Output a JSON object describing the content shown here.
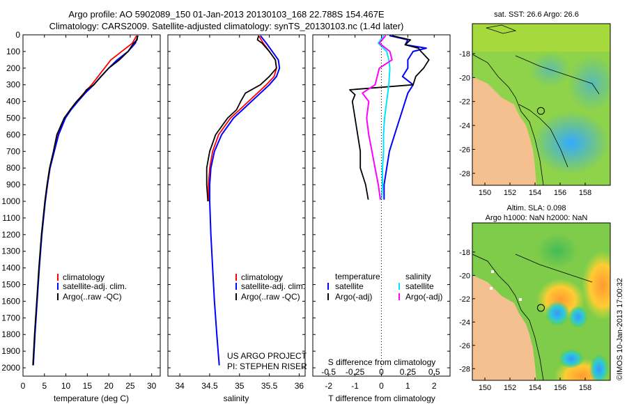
{
  "header": {
    "line1": "Argo profile: AO 5902089_150 01-Jan-2013 20130103_168 22.788S 154.467E",
    "line2": "Climatology: CARS2009. Satellite-adjusted climatology: synTS_20130103.nc (1.4d later)"
  },
  "colors": {
    "climatology": "#ff0000",
    "satellite": "#0000ff",
    "argo": "#000000",
    "sal_satellite": "#00e5ff",
    "sal_argo": "#ff00ff",
    "land": "#f5c08f"
  },
  "depth_ticks": [
    0,
    100,
    200,
    300,
    400,
    500,
    600,
    700,
    800,
    900,
    1000,
    1100,
    1200,
    1300,
    1400,
    1500,
    1600,
    1700,
    1800,
    1900,
    2000
  ],
  "chart_data": [
    {
      "type": "line",
      "name": "temperature-profile",
      "xlabel": "temperature (deg C)",
      "ylabel": "depth",
      "xlim": [
        0,
        32
      ],
      "ylim": [
        0,
        2050
      ],
      "y_inverted": true,
      "xticks": [
        0,
        5,
        10,
        15,
        20,
        25,
        30
      ],
      "legend": [
        "climatology",
        "satellite-adj. clim.",
        "Argo(..raw -QC)"
      ],
      "series": [
        {
          "name": "climatology",
          "depth": [
            5,
            50,
            100,
            150,
            200,
            250,
            300,
            350,
            400,
            450,
            500,
            600,
            700,
            800,
            900,
            1000
          ],
          "values": [
            26.5,
            25.5,
            23.0,
            20.5,
            19.0,
            17.5,
            16.0,
            14.2,
            12.5,
            11.0,
            9.7,
            8.2,
            7.3,
            6.3,
            5.7,
            5.2
          ]
        },
        {
          "name": "satellite-adj. clim.",
          "depth": [
            5,
            50,
            100,
            150,
            200,
            250,
            300,
            350,
            400,
            450,
            500,
            600,
            700,
            800,
            900,
            1000,
            1200,
            1400,
            1600,
            1800,
            1985
          ],
          "values": [
            26.8,
            26.2,
            24.5,
            22.0,
            20.0,
            18.2,
            16.5,
            14.5,
            12.8,
            11.2,
            9.9,
            8.3,
            7.3,
            6.3,
            5.7,
            5.2,
            4.4,
            3.8,
            3.3,
            2.8,
            2.4
          ]
        },
        {
          "name": "Argo(..raw -QC)",
          "depth": [
            5,
            30,
            50,
            100,
            150,
            200,
            250,
            300,
            330,
            360,
            400,
            450,
            500,
            600,
            700,
            800,
            900,
            1000,
            1200,
            1400,
            1600,
            1800,
            1985
          ],
          "values": [
            26.7,
            26.6,
            25.8,
            24.5,
            22.5,
            20.0,
            18.2,
            16.5,
            14.8,
            14.0,
            12.5,
            11.0,
            9.6,
            7.9,
            7.1,
            6.2,
            5.6,
            5.1,
            4.3,
            3.7,
            3.2,
            2.7,
            2.3
          ]
        }
      ]
    },
    {
      "type": "line",
      "name": "salinity-profile",
      "xlabel": "salinity",
      "xlim": [
        33.8,
        36.1
      ],
      "ylim": [
        0,
        2050
      ],
      "y_inverted": true,
      "xticks": [
        34,
        34.5,
        35,
        35.5,
        36
      ],
      "legend": [
        "climatology",
        "satellite-adj. clim.",
        "Argo(..raw -QC)"
      ],
      "annotation": [
        "US ARGO PROJECT",
        "PI: STEPHEN RISER"
      ],
      "series": [
        {
          "name": "climatology",
          "depth": [
            5,
            50,
            100,
            150,
            200,
            250,
            300,
            350,
            400,
            450,
            500,
            600,
            700,
            800,
            900,
            1000
          ],
          "values": [
            35.32,
            35.4,
            35.5,
            35.6,
            35.62,
            35.58,
            35.45,
            35.3,
            35.15,
            35.0,
            34.85,
            34.65,
            34.55,
            34.5,
            34.48,
            34.48
          ]
        },
        {
          "name": "satellite-adj. clim.",
          "depth": [
            5,
            50,
            100,
            150,
            200,
            250,
            300,
            350,
            400,
            450,
            500,
            600,
            700,
            800,
            900,
            1000,
            1200,
            1400,
            1600,
            1800,
            1985
          ],
          "values": [
            35.35,
            35.45,
            35.55,
            35.65,
            35.67,
            35.62,
            35.5,
            35.35,
            35.2,
            35.05,
            34.9,
            34.7,
            34.58,
            34.52,
            34.5,
            34.5,
            34.52,
            34.55,
            34.58,
            34.62,
            34.66
          ]
        },
        {
          "name": "Argo(..raw -QC)",
          "depth": [
            5,
            30,
            50,
            100,
            150,
            200,
            250,
            300,
            350,
            400,
            450,
            500,
            600,
            700,
            800,
            900,
            1000
          ],
          "values": [
            35.32,
            35.3,
            35.38,
            35.5,
            35.6,
            35.62,
            35.5,
            35.35,
            35.1,
            35.02,
            34.95,
            34.8,
            34.6,
            34.5,
            34.45,
            34.45,
            34.47
          ]
        }
      ]
    },
    {
      "type": "line",
      "name": "difference-profile",
      "xlabel": "T difference from climatology",
      "xlabel_top": "S difference from climatology",
      "xlim": [
        -2.6,
        2.6
      ],
      "ylim": [
        0,
        2050
      ],
      "y_inverted": true,
      "xticks": [
        -2,
        -1,
        0,
        1,
        2
      ],
      "s_ticks": [
        -0.5,
        -0.25,
        0,
        0.25,
        0.5
      ],
      "legend_headers": [
        "temperature",
        "salinity"
      ],
      "legend": [
        "satellite",
        "Argo(-adj)",
        "satellite",
        "Argo(-adj)"
      ],
      "series": [
        {
          "name": "temperature satellite",
          "depth": [
            5,
            30,
            60,
            80,
            100,
            150,
            200,
            250,
            300,
            350,
            400,
            450,
            500,
            600,
            700,
            800,
            900,
            990
          ],
          "values": [
            0.3,
            1.0,
            0.9,
            1.7,
            1.2,
            1.0,
            1.0,
            0.8,
            1.2,
            1.0,
            0.9,
            0.8,
            0.7,
            0.5,
            0.3,
            0.2,
            0.1,
            0.1
          ]
        },
        {
          "name": "temperature Argo(-adj)",
          "depth": [
            5,
            30,
            60,
            80,
            100,
            150,
            200,
            250,
            300,
            330,
            360,
            400,
            500,
            600,
            700,
            800,
            900,
            990
          ],
          "values": [
            0.4,
            1.1,
            0.9,
            1.4,
            1.5,
            1.8,
            1.6,
            1.3,
            1.2,
            -1.2,
            -1.0,
            -1.1,
            -1.0,
            -0.9,
            -0.8,
            -0.8,
            -0.6,
            -0.5
          ]
        },
        {
          "name": "salinity satellite",
          "depth": [
            5,
            50,
            100,
            150,
            200,
            300,
            400,
            500,
            600,
            700,
            800,
            900,
            990
          ],
          "values": [
            0.02,
            -0.03,
            0.05,
            0.07,
            0.08,
            0.07,
            0.05,
            0.03,
            0.02,
            0.02,
            0.01,
            0.01,
            0.0
          ]
        },
        {
          "name": "salinity Argo(-adj)",
          "depth": [
            5,
            50,
            100,
            150,
            200,
            300,
            350,
            400,
            500,
            600,
            700,
            800,
            900,
            990
          ],
          "values": [
            0.04,
            -0.02,
            0.08,
            0.1,
            -0.02,
            -0.06,
            -0.18,
            -0.12,
            -0.14,
            -0.12,
            -0.09,
            -0.06,
            -0.03,
            -0.01
          ]
        }
      ]
    },
    {
      "type": "heatmap",
      "name": "sst-map",
      "title": "sat. SST: 26.6 Argo: 26.6",
      "xlim": [
        149,
        160
      ],
      "ylim": [
        -29,
        -15.5
      ],
      "xticks": [
        150,
        152,
        154,
        156,
        158
      ],
      "yticks": [
        -18,
        -20,
        -22,
        -24,
        -26,
        -28
      ],
      "float_position": {
        "lon": 154.467,
        "lat": -22.788
      }
    },
    {
      "type": "heatmap",
      "name": "sla-map",
      "title_lines": [
        "Altim. SLA: 0.098",
        "Argo h1000: NaN h2000: NaN"
      ],
      "xlim": [
        149,
        160
      ],
      "ylim": [
        -29,
        -15.5
      ],
      "xticks": [
        150,
        152,
        154,
        156,
        158
      ],
      "yticks": [
        -18,
        -20,
        -22,
        -24,
        -26,
        -28
      ],
      "float_position": {
        "lon": 154.467,
        "lat": -22.788
      },
      "credit": "©IMOS 10-Jan-2013 17:00:32"
    }
  ]
}
